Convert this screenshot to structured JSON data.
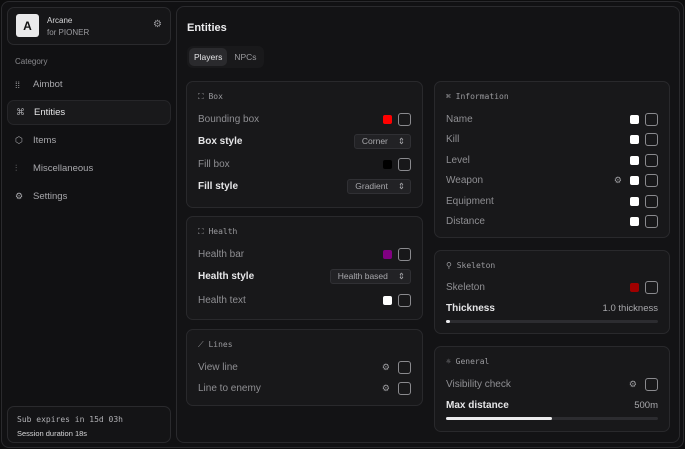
{
  "brand": {
    "logo": "A",
    "name": "Arcane",
    "subtitle": "for PIONER"
  },
  "sidebar": {
    "category_label": "Category",
    "items": [
      {
        "label": "Aimbot",
        "icon": "crosshair-dots-icon"
      },
      {
        "label": "Entities",
        "icon": "entities-icon",
        "active": true
      },
      {
        "label": "Items",
        "icon": "box-icon"
      },
      {
        "label": "Miscellaneous",
        "icon": "sliders-icon"
      },
      {
        "label": "Settings",
        "icon": "gear-icon"
      }
    ]
  },
  "subscription": {
    "expires": "Sub expires in 15d 03h",
    "session": "Session duration 18s"
  },
  "main": {
    "title": "Entities",
    "tabs": [
      {
        "label": "Players",
        "active": true
      },
      {
        "label": "NPCs"
      }
    ]
  },
  "box": {
    "title": "Box",
    "bounding_box": "Bounding box",
    "bounding_color": "#ff0000",
    "box_style": "Box style",
    "box_style_value": "Corner",
    "fill_box": "Fill box",
    "fill_color": "#000000",
    "fill_style": "Fill style",
    "fill_style_value": "Gradient"
  },
  "health": {
    "title": "Health",
    "health_bar": "Health bar",
    "bar_color": "#800080",
    "health_style": "Health style",
    "health_style_value": "Health based",
    "health_text": "Health text",
    "text_color": "#ffffff"
  },
  "lines": {
    "title": "Lines",
    "view_line": "View line",
    "line_to_enemy": "Line to enemy"
  },
  "information": {
    "title": "Information",
    "items": [
      {
        "label": "Name"
      },
      {
        "label": "Kill"
      },
      {
        "label": "Level"
      },
      {
        "label": "Weapon",
        "has_settings": true
      },
      {
        "label": "Equipment"
      },
      {
        "label": "Distance"
      }
    ],
    "color": "#ffffff"
  },
  "skeleton": {
    "title": "Skeleton",
    "skeleton": "Skeleton",
    "color": "#a00000",
    "thickness": "Thickness",
    "thickness_value": "1.0 thickness",
    "thickness_fraction": 0.0
  },
  "general": {
    "title": "General",
    "visibility_check": "Visibility check",
    "max_distance": "Max distance",
    "max_distance_value": "500m",
    "max_distance_fraction": 0.5
  }
}
